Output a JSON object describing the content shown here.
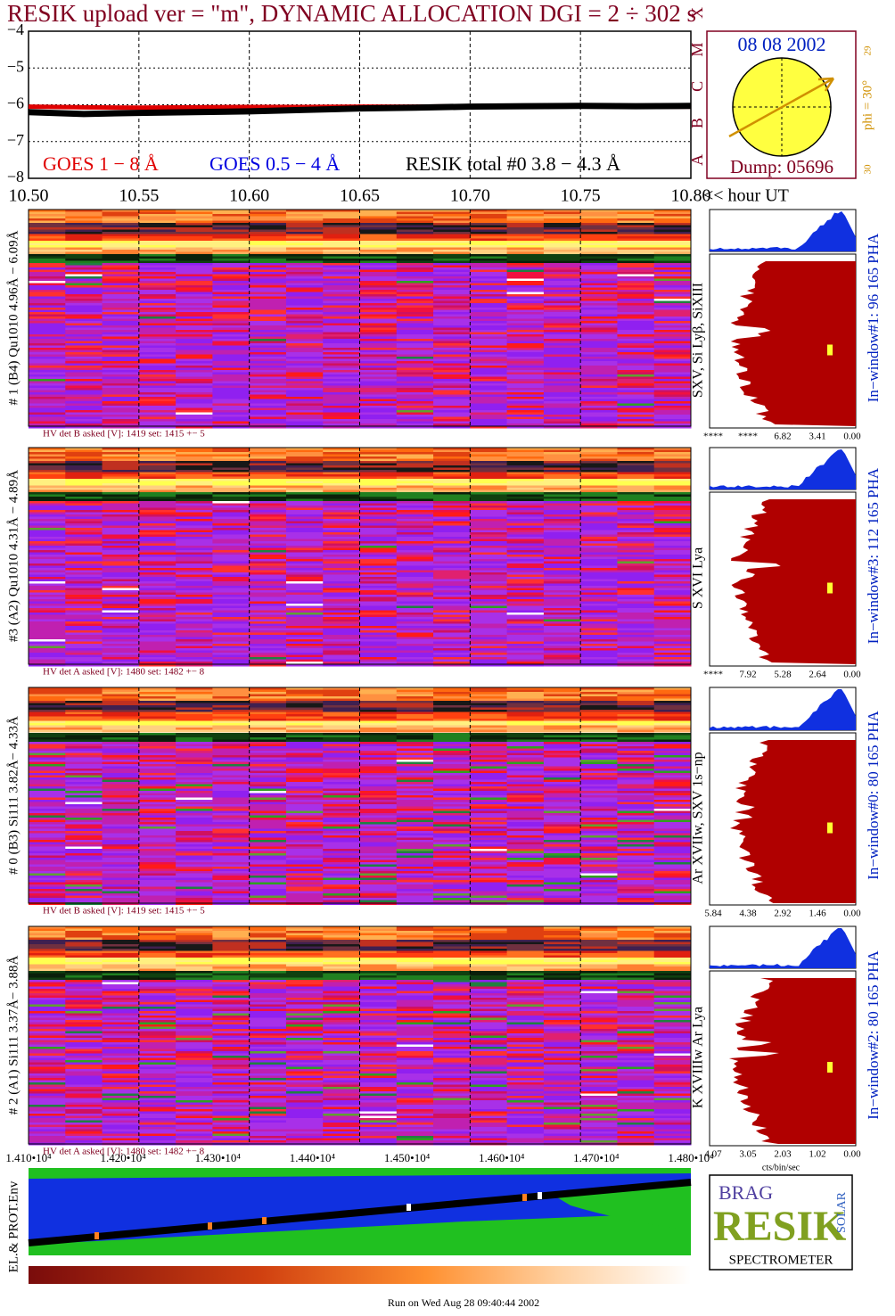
{
  "title": "RESIK upload ver = \"m\", DYNAMIC ALLOCATION  DGI =   2 ÷ 302 s",
  "chart_data": {
    "type": "line",
    "x": [
      10.5,
      10.525,
      10.55,
      10.575,
      10.6,
      10.625,
      10.65,
      10.675,
      10.7,
      10.725,
      10.75,
      10.775,
      10.8
    ],
    "series": [
      {
        "name": "GOES 1 − 8 Å",
        "color": "#e00000",
        "values": [
          -6.05,
          -6.07,
          -6.08,
          -6.07,
          -6.06,
          -6.06,
          -6.05,
          -6.05,
          -6.04,
          -6.04,
          -6.05,
          -6.05,
          -6.05
        ]
      },
      {
        "name": "GOES 0.5 − 4 Å",
        "color": "#0000e0",
        "values": [
          null,
          null,
          null,
          null,
          null,
          null,
          null,
          null,
          null,
          null,
          null,
          null,
          null
        ]
      },
      {
        "name": "RESIK total #0  3.8 − 4.3 Å",
        "color": "#000000",
        "values": [
          -6.2,
          -6.25,
          -6.22,
          -6.2,
          -6.18,
          -6.14,
          -6.1,
          -6.08,
          -6.05,
          -6.04,
          -6.03,
          -6.04,
          -6.03
        ]
      }
    ],
    "xlim": [
      10.5,
      10.8
    ],
    "xticks": [
      {
        "value": 10.5,
        "label": "10.50"
      },
      {
        "value": 10.55,
        "label": "10.55"
      },
      {
        "value": 10.6,
        "label": "10.60"
      },
      {
        "value": 10.65,
        "label": "10.65"
      },
      {
        "value": 10.7,
        "label": "10.70"
      },
      {
        "value": 10.75,
        "label": "10.75"
      },
      {
        "value": 10.8,
        "label": "10.80"
      }
    ],
    "xlabel": "<< hour UT",
    "ylim": [
      -8,
      -4
    ],
    "yticks": [
      {
        "value": -4,
        "label": "−4"
      },
      {
        "value": -5,
        "label": "−5"
      },
      {
        "value": -6,
        "label": "−6"
      },
      {
        "value": -7,
        "label": "−7"
      },
      {
        "value": -8,
        "label": "−8"
      }
    ],
    "flare_classes": [
      "A",
      "B",
      "C",
      "M",
      "X"
    ],
    "grid": true
  },
  "sun": {
    "date": "08 08 2002",
    "phi": "phi = 30°",
    "dump": "Dump: 05696",
    "scale_top": "29",
    "scale_bottom": "30"
  },
  "detectors": [
    {
      "label": "# 1 (B4) Qu1010 4.96Å − 6.09Å",
      "lines": "SXV, Si Lyβ, SiXIII",
      "window": "In−window#1:   96 165  PHA",
      "hv": "HV det B asked [V]:  1419 set:  1415 +−    5",
      "pha_ticks": [
        "****",
        "****",
        "6.82",
        "3.41",
        "0.00"
      ]
    },
    {
      "label": "#3 (A2) Qu1010  4.31Å − 4.89Å",
      "lines": "S XVI Lya",
      "window": "In−window#3:  112 165  PHA",
      "hv": "HV det A asked [V]:  1480 set:  1482 +−    8",
      "pha_ticks": [
        "****",
        "7.92",
        "5.28",
        "2.64",
        "0.00"
      ]
    },
    {
      "label": "# 0 (B3) Si111  3.82Å− 4.33Å",
      "lines": "Ar XVIIw,  SXV 1s−np",
      "window": "In−window#0:   80 165  PHA",
      "hv": "HV det B asked [V]:  1419 set:  1415 +−    5",
      "pha_ticks": [
        "5.84",
        "4.38",
        "2.92",
        "1.46",
        "0.00"
      ]
    },
    {
      "label": "# 2 (A1) Si111  3.37Å− 3.88Å",
      "lines": "K XVIIIw  Ar Lya",
      "window": "In−window#2:   80 165  PHA",
      "hv": "HV det A asked [V]:  1480 set:  1482 +−    8",
      "pha_ticks": [
        "4.07",
        "3.05",
        "2.03",
        "1.02",
        "0.00"
      ]
    }
  ],
  "pha_unit": "cts/bin/sec",
  "bin_axis": [
    "1.410•10⁴",
    "1.420•10⁴",
    "1.430•10⁴",
    "1.440•10⁴",
    "1.450•10⁴",
    "1.460•10⁴",
    "1.470•10⁴",
    "1.480•10⁴"
  ],
  "env_label": "EL.& PROT.Env",
  "logo": {
    "top": "BRAG",
    "middle": "RESIK",
    "side": "SOLAR",
    "bottom": "SPECTROMETER"
  },
  "footer": "Run on Wed Aug 28 09:40:44 2002"
}
